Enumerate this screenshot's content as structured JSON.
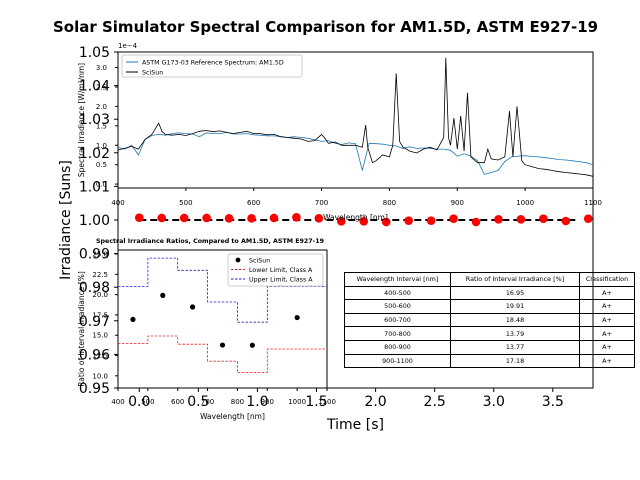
{
  "figure": {
    "title": "Solar Simulator Spectral Comparison for AM1.5D, ASTM E927-19",
    "colors": {
      "reference": "#1f77b4",
      "scisun": "#000000",
      "lower": "#d62728",
      "upper": "#1f1fd6",
      "timeseries": "#ff0000"
    }
  },
  "chart_data": [
    {
      "id": "background",
      "type": "scatter",
      "x": [
        0.0,
        0.05,
        0.1,
        0.15,
        0.2,
        0.25,
        0.3,
        0.35,
        0.4,
        0.45,
        0.5,
        0.55,
        0.6,
        0.65,
        0.7,
        0.75,
        0.8,
        0.85,
        0.9,
        0.95,
        1.0,
        1.05,
        1.1,
        1.15,
        1.2,
        1.25,
        1.3,
        1.35,
        1.4,
        1.45,
        1.5,
        1.55,
        1.6,
        1.65,
        1.7,
        1.75,
        1.8,
        1.85,
        1.9,
        1.95,
        2.0,
        2.05,
        2.1,
        2.15,
        2.2,
        2.25,
        2.3,
        2.35,
        2.4,
        2.45,
        2.5,
        2.55,
        2.6,
        2.65,
        2.7,
        2.75,
        2.8,
        2.85,
        2.9,
        2.95,
        3.0,
        3.05,
        3.1,
        3.15,
        3.2,
        3.25,
        3.3,
        3.35,
        3.4,
        3.45,
        3.5,
        3.55,
        3.6,
        3.65,
        3.7
      ],
      "points": [
        [
          0.0,
          1.0007
        ],
        [
          0.19,
          1.0006
        ],
        [
          0.38,
          1.0006
        ],
        [
          0.57,
          1.0006
        ],
        [
          0.76,
          1.0005
        ],
        [
          0.95,
          1.0005
        ],
        [
          1.14,
          1.0006
        ],
        [
          1.33,
          1.0008
        ],
        [
          1.52,
          1.0005
        ],
        [
          1.71,
          0.9996
        ],
        [
          1.9,
          0.9996
        ],
        [
          2.09,
          0.9994
        ],
        [
          2.28,
          0.9998
        ],
        [
          2.47,
          0.9998
        ],
        [
          2.66,
          1.0004
        ],
        [
          2.85,
          0.9994
        ],
        [
          3.04,
          1.0002
        ],
        [
          3.23,
          1.0002
        ],
        [
          3.42,
          1.0004
        ],
        [
          3.61,
          0.9997
        ],
        [
          3.8,
          1.0004
        ]
      ],
      "xlabel": "Time [s]",
      "ylabel": "Irradiance [Suns]",
      "xticks": [
        "0.0",
        "0.5",
        "1.0",
        "1.5",
        "2.0",
        "2.5",
        "3.0",
        "3.5"
      ],
      "yticks": [
        "0.95",
        "0.96",
        "0.97",
        "0.98",
        "0.99",
        "1.00",
        "1.01",
        "1.02",
        "1.03",
        "1.04",
        "1.05"
      ],
      "xlim": [
        -0.18,
        3.84
      ],
      "ylim": [
        0.95,
        1.05
      ],
      "reference_line": 1.0,
      "grid": false
    },
    {
      "id": "spectrum",
      "type": "line",
      "ylabel": "Spectral Irradiance [W/m²/nm]",
      "xlabel": "Wavelength [nm]",
      "xlim": [
        400,
        1100
      ],
      "ylim": [
        -0.1,
        3.4
      ],
      "offset_text": "1e−4",
      "xticks": [
        "400",
        "500",
        "600",
        "700",
        "800",
        "900",
        "1000",
        "1100"
      ],
      "yticks": [
        "0.0",
        "0.5",
        "1.0",
        "1.5",
        "2.0",
        "2.5",
        "3.0"
      ],
      "legend": [
        "ASTM G173-03 Reference Spectrum: AM1.5D",
        "SciSun"
      ],
      "legend_position": "upper-left",
      "series": [
        {
          "name": "ASTM G173-03 Reference Spectrum: AM1.5D",
          "points": [
            [
              400,
              0.95
            ],
            [
              410,
              0.9
            ],
            [
              420,
              1.0
            ],
            [
              430,
              0.75
            ],
            [
              440,
              1.15
            ],
            [
              450,
              1.25
            ],
            [
              460,
              1.28
            ],
            [
              470,
              1.26
            ],
            [
              480,
              1.3
            ],
            [
              490,
              1.32
            ],
            [
              500,
              1.3
            ],
            [
              510,
              1.29
            ],
            [
              520,
              1.22
            ],
            [
              530,
              1.32
            ],
            [
              540,
              1.3
            ],
            [
              550,
              1.3
            ],
            [
              560,
              1.33
            ],
            [
              570,
              1.29
            ],
            [
              580,
              1.29
            ],
            [
              590,
              1.3
            ],
            [
              600,
              1.27
            ],
            [
              610,
              1.26
            ],
            [
              620,
              1.24
            ],
            [
              630,
              1.24
            ],
            [
              640,
              1.22
            ],
            [
              650,
              1.2
            ],
            [
              660,
              1.22
            ],
            [
              670,
              1.2
            ],
            [
              680,
              1.18
            ],
            [
              690,
              1.14
            ],
            [
              700,
              1.1
            ],
            [
              710,
              1.12
            ],
            [
              720,
              1.05
            ],
            [
              730,
              1.02
            ],
            [
              740,
              1.06
            ],
            [
              750,
              1.04
            ],
            [
              760,
              0.35
            ],
            [
              770,
              1.05
            ],
            [
              780,
              1.04
            ],
            [
              790,
              1.03
            ],
            [
              800,
              1.0
            ],
            [
              810,
              0.98
            ],
            [
              820,
              0.92
            ],
            [
              830,
              0.96
            ],
            [
              840,
              0.92
            ],
            [
              850,
              0.93
            ],
            [
              860,
              0.92
            ],
            [
              870,
              0.9
            ],
            [
              880,
              0.9
            ],
            [
              890,
              0.87
            ],
            [
              900,
              0.72
            ],
            [
              910,
              0.78
            ],
            [
              920,
              0.72
            ],
            [
              930,
              0.6
            ],
            [
              940,
              0.25
            ],
            [
              950,
              0.3
            ],
            [
              960,
              0.35
            ],
            [
              970,
              0.58
            ],
            [
              980,
              0.7
            ],
            [
              990,
              0.72
            ],
            [
              1000,
              0.73
            ],
            [
              1010,
              0.71
            ],
            [
              1020,
              0.7
            ],
            [
              1030,
              0.68
            ],
            [
              1040,
              0.66
            ],
            [
              1050,
              0.63
            ],
            [
              1060,
              0.62
            ],
            [
              1070,
              0.6
            ],
            [
              1080,
              0.58
            ],
            [
              1090,
              0.55
            ],
            [
              1100,
              0.5
            ]
          ]
        },
        {
          "name": "SciSun",
          "points": [
            [
              400,
              0.88
            ],
            [
              410,
              0.92
            ],
            [
              420,
              0.97
            ],
            [
              430,
              0.9
            ],
            [
              440,
              1.15
            ],
            [
              450,
              1.28
            ],
            [
              460,
              1.57
            ],
            [
              465,
              1.35
            ],
            [
              470,
              1.28
            ],
            [
              480,
              1.26
            ],
            [
              490,
              1.28
            ],
            [
              500,
              1.25
            ],
            [
              510,
              1.3
            ],
            [
              520,
              1.36
            ],
            [
              530,
              1.38
            ],
            [
              540,
              1.35
            ],
            [
              550,
              1.37
            ],
            [
              560,
              1.33
            ],
            [
              570,
              1.3
            ],
            [
              580,
              1.33
            ],
            [
              590,
              1.36
            ],
            [
              600,
              1.3
            ],
            [
              610,
              1.3
            ],
            [
              620,
              1.27
            ],
            [
              630,
              1.28
            ],
            [
              640,
              1.22
            ],
            [
              650,
              1.2
            ],
            [
              660,
              1.18
            ],
            [
              670,
              1.16
            ],
            [
              680,
              1.1
            ],
            [
              690,
              1.12
            ],
            [
              700,
              1.28
            ],
            [
              705,
              1.18
            ],
            [
              710,
              1.05
            ],
            [
              720,
              1.08
            ],
            [
              730,
              1.0
            ],
            [
              740,
              1.0
            ],
            [
              750,
              1.0
            ],
            [
              760,
              0.95
            ],
            [
              765,
              1.52
            ],
            [
              768,
              0.95
            ],
            [
              775,
              0.55
            ],
            [
              780,
              0.6
            ],
            [
              790,
              0.75
            ],
            [
              800,
              0.7
            ],
            [
              805,
              1.0
            ],
            [
              810,
              2.85
            ],
            [
              815,
              1.1
            ],
            [
              820,
              0.95
            ],
            [
              830,
              0.85
            ],
            [
              840,
              0.8
            ],
            [
              850,
              0.9
            ],
            [
              860,
              0.95
            ],
            [
              870,
              0.88
            ],
            [
              880,
              1.2
            ],
            [
              883,
              3.25
            ],
            [
              887,
              1.2
            ],
            [
              890,
              1.0
            ],
            [
              895,
              1.7
            ],
            [
              900,
              0.9
            ],
            [
              905,
              1.75
            ],
            [
              910,
              0.85
            ],
            [
              915,
              2.35
            ],
            [
              920,
              0.7
            ],
            [
              930,
              0.55
            ],
            [
              940,
              0.55
            ],
            [
              945,
              0.9
            ],
            [
              950,
              0.65
            ],
            [
              960,
              0.62
            ],
            [
              970,
              0.7
            ],
            [
              977,
              1.88
            ],
            [
              982,
              0.7
            ],
            [
              988,
              2.0
            ],
            [
              995,
              0.6
            ],
            [
              1000,
              0.5
            ],
            [
              1010,
              0.45
            ],
            [
              1020,
              0.4
            ],
            [
              1030,
              0.38
            ],
            [
              1040,
              0.35
            ],
            [
              1050,
              0.32
            ],
            [
              1060,
              0.3
            ],
            [
              1070,
              0.28
            ],
            [
              1080,
              0.26
            ],
            [
              1090,
              0.24
            ],
            [
              1100,
              0.2
            ]
          ]
        }
      ]
    },
    {
      "id": "ratios",
      "type": "scatter",
      "title": "Spectral Irradiance Ratios, Compared to AM1.5D, ASTM E927-19",
      "xlabel": "Wavelength [nm]",
      "ylabel": "Ratio of Interval Irradiance [%]",
      "xlim": [
        400,
        1100
      ],
      "ylim": [
        8.5,
        25.5
      ],
      "xticks": [
        "400",
        "500",
        "600",
        "700",
        "800",
        "900",
        "1000",
        "1100"
      ],
      "yticks": [
        "10.0",
        "12.5",
        "15.0",
        "17.5",
        "20.0",
        "22.5",
        "25.0"
      ],
      "legend": [
        "SciSun",
        "Lower Limit, Class A",
        "Upper Limit, Class A"
      ],
      "legend_position": "upper-right",
      "series": [
        {
          "name": "SciSun",
          "x": [
            450,
            550,
            650,
            750,
            850,
            1000
          ],
          "values": [
            16.95,
            19.91,
            18.48,
            13.79,
            13.77,
            17.18
          ]
        },
        {
          "name": "Lower Limit, Class A",
          "steps": [
            [
              400,
              500,
              14.0
            ],
            [
              500,
              600,
              14.9
            ],
            [
              600,
              700,
              13.9
            ],
            [
              700,
              800,
              11.8
            ],
            [
              800,
              900,
              10.4
            ],
            [
              900,
              1100,
              13.3
            ]
          ]
        },
        {
          "name": "Upper Limit, Class A",
          "steps": [
            [
              400,
              500,
              21.0
            ],
            [
              500,
              600,
              24.5
            ],
            [
              600,
              700,
              23.0
            ],
            [
              700,
              800,
              19.1
            ],
            [
              800,
              900,
              16.6
            ],
            [
              900,
              1100,
              21.0
            ]
          ]
        }
      ]
    }
  ],
  "table": {
    "headers": [
      "Wavelength Interval [nm]",
      "Ratio of Interval Irradiance [%]",
      "Classification"
    ],
    "rows": [
      [
        "400-500",
        "16.95",
        "A+"
      ],
      [
        "500-600",
        "19.91",
        "A+"
      ],
      [
        "600-700",
        "18.48",
        "A+"
      ],
      [
        "700-800",
        "13.79",
        "A+"
      ],
      [
        "800-900",
        "13.77",
        "A+"
      ],
      [
        "900-1100",
        "17.18",
        "A+"
      ]
    ]
  }
}
